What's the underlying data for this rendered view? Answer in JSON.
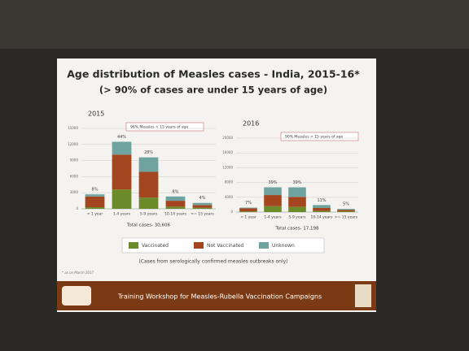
{
  "title": "Age distribution of Measles cases - India, 2015-16*",
  "subtitle": "(> 90%  of cases are under 15 years of age)",
  "note": "(Cases from serologically confirmed measles outbreaks only)",
  "footnote": "* as on  March 2017",
  "footer": "Training Workshop for Measles-Rubella Vaccination Campaigns",
  "chart_data": [
    {
      "type": "stacked-bar",
      "title": "2015",
      "annotation": "96% Measles < 15 years of age",
      "total_label": "Total cases- 30,606",
      "categories": [
        "< 1 year",
        "1-4 years",
        "5-9 years",
        "10-14 years",
        ">= 15 years"
      ],
      "bar_labels": [
        "8%",
        "44%",
        "28%",
        "8%",
        "4%"
      ],
      "series": [
        {
          "name": "Vaccinated",
          "color": "#6b8a2a",
          "values": [
            300,
            3600,
            2100,
            400,
            200
          ]
        },
        {
          "name": "Not Vaccinated",
          "color": "#a3451f",
          "values": [
            2000,
            6500,
            4800,
            1100,
            500
          ]
        },
        {
          "name": "Unknown",
          "color": "#6fa3a0",
          "values": [
            400,
            2400,
            2700,
            800,
            400
          ]
        }
      ],
      "ylim": [
        0,
        15000
      ],
      "yticks": [
        0,
        3000,
        6000,
        9000,
        12000,
        15000
      ],
      "grid": true
    },
    {
      "type": "stacked-bar",
      "title": "2016",
      "annotation": "90% Measles < 15 years of age",
      "total_label": "Total cases- 17,198",
      "categories": [
        "< 1 year",
        "1-4 years",
        "5-9 years",
        "10-14 years",
        ">= 15 years"
      ],
      "bar_labels": [
        "7%",
        "39%",
        "39%",
        "11%",
        "5%"
      ],
      "series": [
        {
          "color": "#6b8a2a",
          "values": [
            200,
            1600,
            1400,
            300,
            200
          ]
        },
        {
          "color": "#a3451f",
          "values": [
            800,
            3000,
            2700,
            800,
            400
          ]
        },
        {
          "color": "#6fa3a0",
          "values": [
            200,
            2100,
            2600,
            800,
            260
          ]
        }
      ],
      "ylim": [
        0,
        20000
      ],
      "yticks": [
        0,
        4000,
        8000,
        12000,
        16000,
        20000
      ],
      "grid": true
    }
  ]
}
